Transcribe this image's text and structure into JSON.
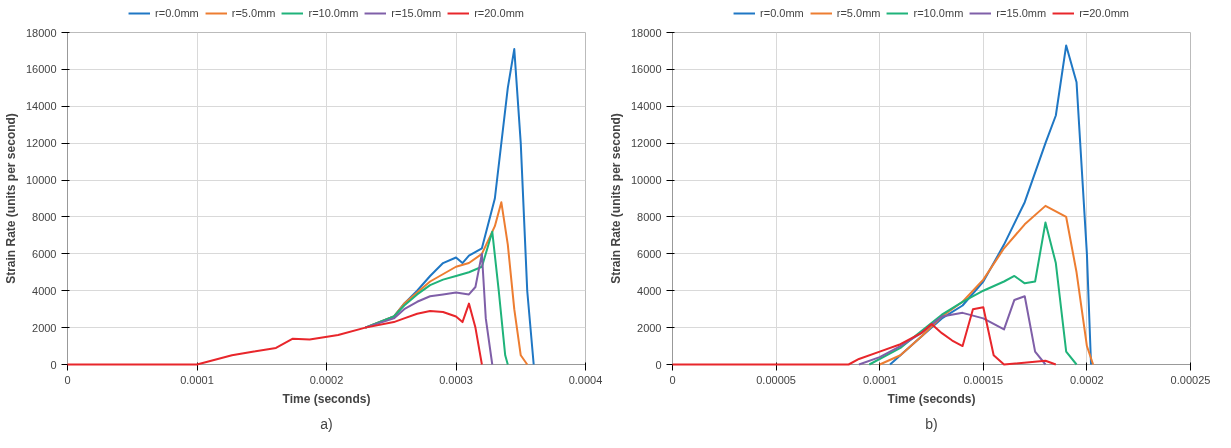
{
  "chart_data": [
    {
      "type": "line",
      "xlabel": "Time (seconds)",
      "ylabel": "Strain Rate (units per second)",
      "annotations": [
        "a)"
      ],
      "legend": "top",
      "grid": true,
      "xlim": [
        0,
        0.0004
      ],
      "xticks": [
        0,
        {
          "value": 0.0001,
          "label": "0.0001"
        },
        {
          "value": 0.0002,
          "label": "0.0002"
        },
        {
          "value": 0.0003,
          "label": "0.0003"
        },
        {
          "value": 0.0004,
          "label": "0.0004"
        }
      ],
      "ylim": [
        0,
        18000
      ],
      "yticks": [
        0,
        2000,
        4000,
        6000,
        8000,
        10000,
        12000,
        14000,
        16000,
        18000
      ],
      "series": [
        {
          "name": "r=0.0mm",
          "color": "#1f77c4",
          "x": [
            0.00023,
            0.000252,
            0.00026,
            0.00027,
            0.00028,
            0.00029,
            0.0003,
            0.000305,
            0.00031,
            0.00032,
            0.00033,
            0.00034,
            0.000345,
            0.00035,
            0.000355,
            0.00036
          ],
          "values": [
            2000,
            2600,
            3300,
            4000,
            4800,
            5500,
            5800,
            5500,
            5900,
            6300,
            9000,
            15000,
            17100,
            12000,
            4000,
            0
          ]
        },
        {
          "name": "r=5.0mm",
          "color": "#ed7d31",
          "x": [
            0.00023,
            0.000252,
            0.00026,
            0.00027,
            0.00028,
            0.0003,
            0.00031,
            0.00032,
            0.00033,
            0.000335,
            0.00034,
            0.000345,
            0.00035,
            0.000355
          ],
          "values": [
            2000,
            2600,
            3300,
            3900,
            4500,
            5300,
            5500,
            6000,
            7500,
            8800,
            6500,
            3000,
            500,
            0
          ]
        },
        {
          "name": "r=10.0mm",
          "color": "#1fb37a",
          "x": [
            0.00023,
            0.000252,
            0.00026,
            0.00027,
            0.00028,
            0.00029,
            0.0003,
            0.00031,
            0.00032,
            0.000328,
            0.000333,
            0.000338,
            0.00034
          ],
          "values": [
            2000,
            2600,
            3200,
            3800,
            4300,
            4600,
            4800,
            5000,
            5300,
            7200,
            4000,
            500,
            0
          ]
        },
        {
          "name": "r=15.0mm",
          "color": "#7f5fa8",
          "x": [
            0.00023,
            0.000252,
            0.00026,
            0.00027,
            0.00028,
            0.00029,
            0.0003,
            0.00031,
            0.000315,
            0.00032,
            0.000323,
            0.000328
          ],
          "values": [
            2000,
            2500,
            3000,
            3400,
            3700,
            3800,
            3900,
            3800,
            4200,
            6000,
            2500,
            0
          ]
        },
        {
          "name": "r=20.0mm",
          "color": "#e8262b",
          "x": [
            0,
            0.0001,
            0.000127,
            0.000144,
            0.000161,
            0.000174,
            0.000187,
            0.000209,
            0.00023,
            0.000252,
            0.00026,
            0.00027,
            0.00028,
            0.00029,
            0.0003,
            0.000305,
            0.00031,
            0.000315,
            0.00032
          ],
          "values": [
            0,
            0,
            500,
            700,
            900,
            1400,
            1350,
            1600,
            2000,
            2300,
            2500,
            2750,
            2900,
            2850,
            2600,
            2300,
            3300,
            2000,
            0
          ]
        }
      ]
    },
    {
      "type": "line",
      "xlabel": "Time (seconds)",
      "ylabel": "Strain Rate (units per second)",
      "annotations": [
        "b)"
      ],
      "legend": "top",
      "grid": true,
      "xlim": [
        0,
        0.00025
      ],
      "xticks": [
        0,
        {
          "value": 5e-05,
          "label": "0.00005"
        },
        {
          "value": 0.0001,
          "label": "0.0001"
        },
        {
          "value": 0.00015,
          "label": "0.00015"
        },
        {
          "value": 0.0002,
          "label": "0.0002"
        },
        {
          "value": 0.00025,
          "label": "0.00025"
        }
      ],
      "ylim": [
        0,
        18000
      ],
      "yticks": [
        0,
        2000,
        4000,
        6000,
        8000,
        10000,
        12000,
        14000,
        16000,
        18000
      ],
      "series": [
        {
          "name": "r=0.0mm",
          "color": "#1f77c4",
          "x": [
            0.000105,
            0.00012,
            0.00013,
            0.00014,
            0.00015,
            0.00016,
            0.00017,
            0.00018,
            0.000185,
            0.00019,
            0.000195,
            0.0002,
            0.000202
          ],
          "values": [
            0,
            1500,
            2500,
            3200,
            4500,
            6500,
            8800,
            12000,
            13500,
            17300,
            15300,
            6000,
            0
          ]
        },
        {
          "name": "r=5.0mm",
          "color": "#ed7d31",
          "x": [
            0.0001,
            0.00011,
            0.00012,
            0.00013,
            0.00014,
            0.00015,
            0.00016,
            0.00017,
            0.00018,
            0.00019,
            0.000195,
            0.0002,
            0.000203
          ],
          "values": [
            0,
            500,
            1500,
            2600,
            3400,
            4600,
            6300,
            7600,
            8600,
            8000,
            5000,
            1000,
            0
          ]
        },
        {
          "name": "r=10.0mm",
          "color": "#1fb37a",
          "x": [
            9.5e-05,
            0.00011,
            0.00012,
            0.00013,
            0.00014,
            0.00015,
            0.00016,
            0.000165,
            0.00017,
            0.000175,
            0.00018,
            0.000185,
            0.00019,
            0.000195
          ],
          "values": [
            0,
            900,
            1800,
            2700,
            3400,
            4000,
            4500,
            4800,
            4400,
            4500,
            7700,
            5500,
            700,
            0
          ]
        },
        {
          "name": "r=15.0mm",
          "color": "#7f5fa8",
          "x": [
            9e-05,
            0.0001,
            0.00011,
            0.00012,
            0.00013,
            0.00014,
            0.00015,
            0.00016,
            0.000165,
            0.00017,
            0.000175,
            0.00018
          ],
          "values": [
            0,
            400,
            1000,
            1700,
            2600,
            2800,
            2500,
            1900,
            3500,
            3700,
            700,
            0
          ]
        },
        {
          "name": "r=20.0mm",
          "color": "#e8262b",
          "x": [
            0,
            8.5e-05,
            9e-05,
            0.0001,
            0.00011,
            0.00012,
            0.000125,
            0.00013,
            0.000135,
            0.00014,
            0.000145,
            0.00015,
            0.000155,
            0.00016,
            0.00018,
            0.000185
          ],
          "values": [
            0,
            0,
            300,
            700,
            1100,
            1700,
            2200,
            1700,
            1300,
            1000,
            3000,
            3100,
            500,
            0,
            200,
            0
          ]
        }
      ]
    }
  ]
}
